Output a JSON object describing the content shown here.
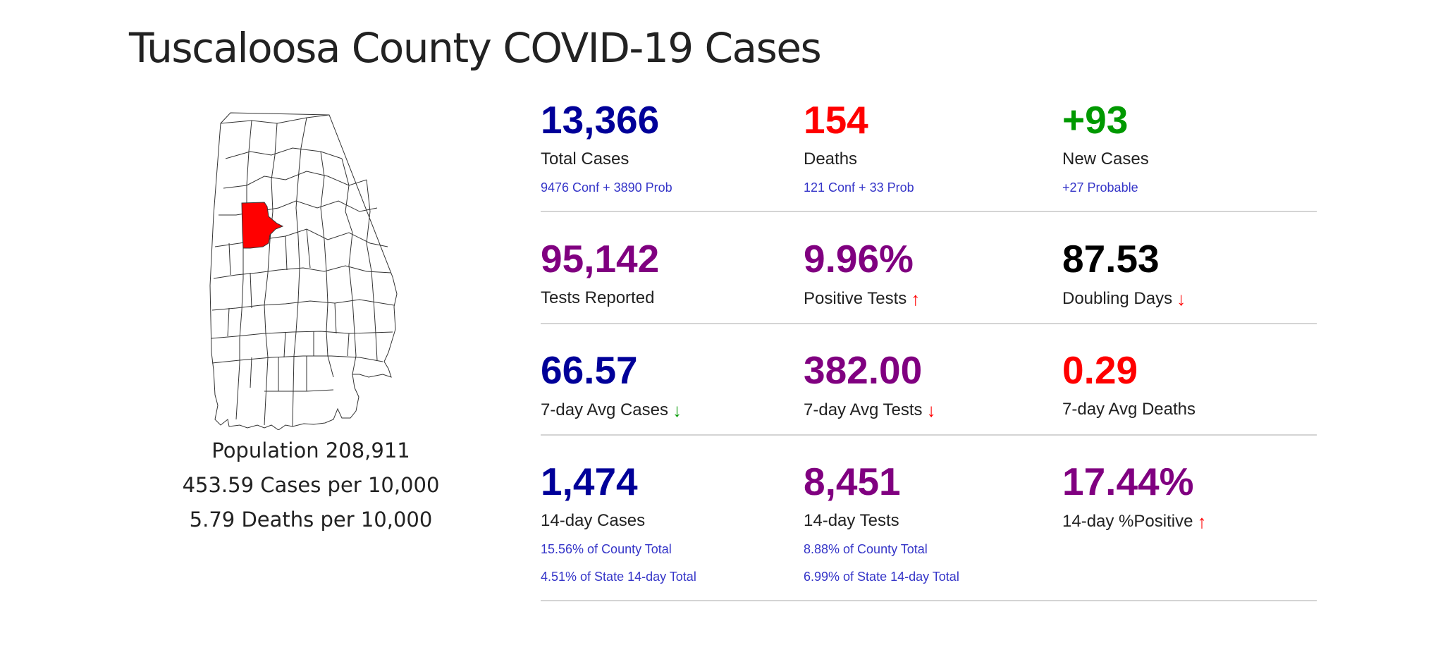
{
  "title": "Tuscaloosa County COVID-19 Cases",
  "colors": {
    "blue": "#000099",
    "red": "#ff0000",
    "green": "#009900",
    "purple": "#800080",
    "black": "#000000",
    "sub_text": "#3535c8",
    "highlight_county": "#ff0000"
  },
  "map": {
    "highlighted_county": "Tuscaloosa"
  },
  "population": {
    "population": "Population 208,911",
    "cases_per": "453.59 Cases per 10,000",
    "deaths_per": "5.79 Deaths per 10,000"
  },
  "stats": {
    "total_cases": {
      "value": "13,366",
      "label": "Total Cases",
      "sub": "9476 Conf + 3890 Prob",
      "color": "blue"
    },
    "deaths": {
      "value": "154",
      "label": "Deaths",
      "sub": "121 Conf + 33 Prob",
      "color": "red"
    },
    "new_cases": {
      "value": "+93",
      "label": "New Cases",
      "sub": "+27 Probable",
      "color": "green"
    },
    "tests_reported": {
      "value": "95,142",
      "label": "Tests Reported",
      "color": "purple"
    },
    "positive_tests": {
      "value": "9.96%",
      "label": "Positive Tests",
      "color": "purple",
      "arrow": "up",
      "arrow_color": "red"
    },
    "doubling_days": {
      "value": "87.53",
      "label": "Doubling Days",
      "color": "black",
      "arrow": "down",
      "arrow_color": "red"
    },
    "avg_cases_7": {
      "value": "66.57",
      "label": "7-day Avg Cases",
      "color": "blue",
      "arrow": "down",
      "arrow_color": "green"
    },
    "avg_tests_7": {
      "value": "382.00",
      "label": "7-day Avg Tests",
      "color": "purple",
      "arrow": "down",
      "arrow_color": "red"
    },
    "avg_deaths_7": {
      "value": "0.29",
      "label": "7-day Avg Deaths",
      "color": "red"
    },
    "cases_14": {
      "value": "1,474",
      "label": "14-day Cases",
      "sub": "15.56% of County Total",
      "sub2": "4.51% of State 14-day Total",
      "color": "blue"
    },
    "tests_14": {
      "value": "8,451",
      "label": "14-day Tests",
      "sub": "8.88% of County Total",
      "sub2": "6.99% of State 14-day Total",
      "color": "purple"
    },
    "positive_14": {
      "value": "17.44%",
      "label": "14-day %Positive",
      "color": "purple",
      "arrow": "up",
      "arrow_color": "red"
    }
  }
}
